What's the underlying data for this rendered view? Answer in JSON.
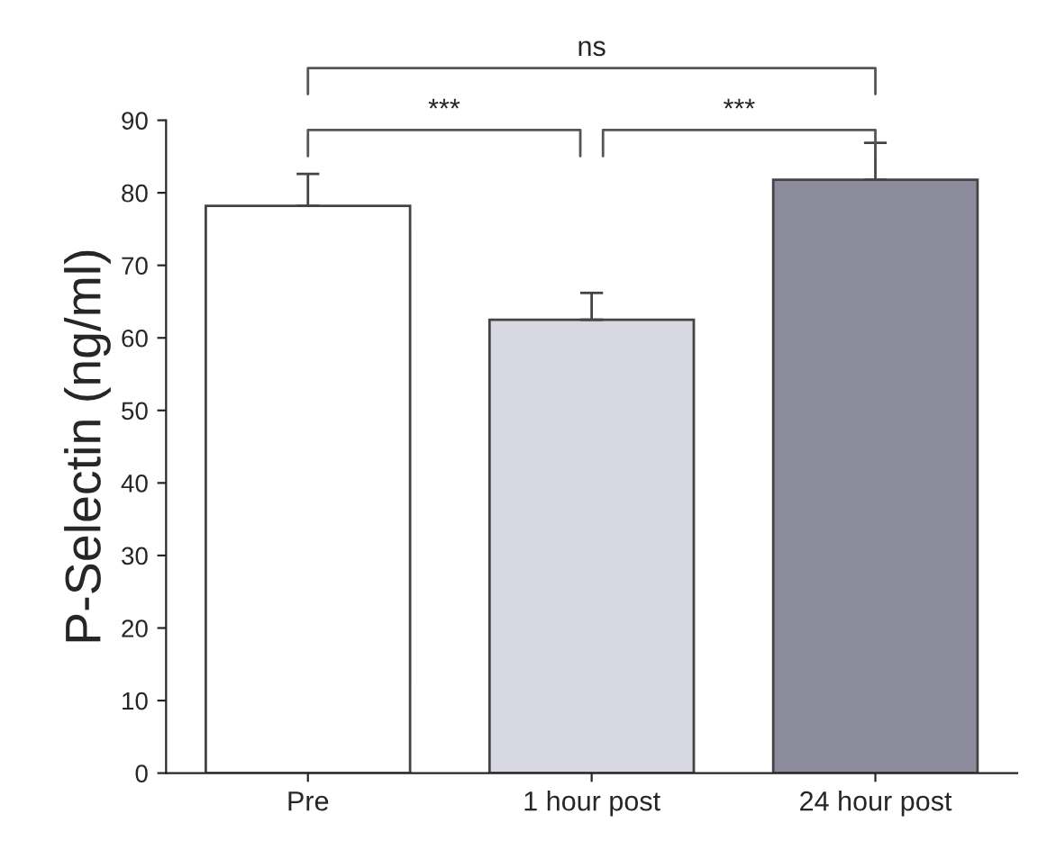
{
  "chart_data": {
    "type": "bar",
    "ylabel": "P-Selectin (ng/ml)",
    "categories": [
      "Pre",
      "1 hour post",
      "24 hour post"
    ],
    "values": [
      78.2,
      62.5,
      81.8
    ],
    "errors": [
      [
        78.2,
        82.6
      ],
      [
        62.5,
        66.2
      ],
      [
        81.8,
        86.9
      ]
    ],
    "colors": [
      "#ffffff",
      "#d8d8e2",
      "#8c8c9c"
    ],
    "ylim": [
      0,
      90
    ],
    "yticks": [
      0,
      10,
      20,
      30,
      40,
      50,
      60,
      70,
      80,
      90
    ],
    "annotations": [
      "***",
      "***",
      "ns"
    ],
    "grid": false,
    "legend": false
  }
}
